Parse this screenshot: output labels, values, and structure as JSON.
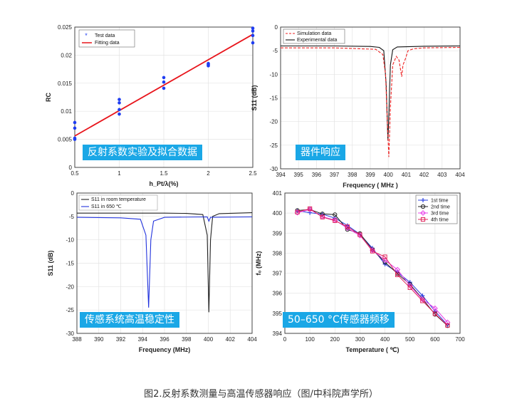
{
  "figure": {
    "caption": "图2.反射系数测量与高温传感器响应（图/中科院声学所）",
    "panel_tags": [
      "反射系数实验及拟合数据",
      "器件响应",
      "传感系统高温稳定性",
      "50–650 °C传感器频移"
    ]
  },
  "chart_data": [
    {
      "type": "scatter",
      "xlabel": "h_Pt/λ(%)",
      "ylabel": "RC",
      "xlim": [
        0.5,
        2.5
      ],
      "ylim": [
        0,
        0.025
      ],
      "xticks": [
        "0.5",
        "1",
        "1.5",
        "2",
        "2.5"
      ],
      "yticks": [
        "0",
        "0.005",
        "0.01",
        "0.015",
        "0.02",
        "0.025"
      ],
      "grid": true,
      "legend_position": "top-left",
      "colors": {
        "test": "#1f3df2",
        "fit": "#e8141b"
      },
      "series": [
        {
          "name": "Test data",
          "points": [
            [
              0.5,
              0.005
            ],
            [
              0.5,
              0.0052
            ],
            [
              0.5,
              0.007
            ],
            [
              0.5,
              0.008
            ],
            [
              1,
              0.0095
            ],
            [
              1,
              0.0103
            ],
            [
              1,
              0.0115
            ],
            [
              1,
              0.0121
            ],
            [
              1.5,
              0.0141
            ],
            [
              1.5,
              0.0152
            ],
            [
              1.5,
              0.016
            ],
            [
              2,
              0.0181
            ],
            [
              2,
              0.0183
            ],
            [
              2,
              0.0185
            ],
            [
              2.5,
              0.0222
            ],
            [
              2.5,
              0.0235
            ],
            [
              2.5,
              0.0243
            ],
            [
              2.5,
              0.0248
            ]
          ]
        },
        {
          "name": "Fitting data",
          "points": [
            [
              0.5,
              0.0056
            ],
            [
              2.5,
              0.0237
            ]
          ]
        }
      ]
    },
    {
      "type": "line",
      "xlabel": "Frequency ( MHz )",
      "ylabel": "S11 (dB)",
      "xlim": [
        394,
        404
      ],
      "ylim": [
        -30,
        0
      ],
      "xticks": [
        "394",
        "395",
        "396",
        "397",
        "398",
        "399",
        "400",
        "401",
        "402",
        "403",
        "404"
      ],
      "yticks": [
        "0",
        "-5",
        "-10",
        "-15",
        "-20",
        "-25",
        "-30"
      ],
      "grid": true,
      "legend_position": "top-left",
      "colors": {
        "sim": "#ee2222",
        "exp": "#111111"
      },
      "series": [
        {
          "name": "Simulation data",
          "style": "dashed",
          "points": [
            [
              394,
              -4.4
            ],
            [
              397,
              -4.4
            ],
            [
              399.3,
              -4.7
            ],
            [
              399.7,
              -5.8
            ],
            [
              399.85,
              -10
            ],
            [
              399.95,
              -20
            ],
            [
              400.03,
              -27.5
            ],
            [
              400.12,
              -17
            ],
            [
              400.25,
              -8
            ],
            [
              400.45,
              -6.2
            ],
            [
              400.6,
              -7
            ],
            [
              400.75,
              -10.5
            ],
            [
              400.82,
              -8
            ],
            [
              400.95,
              -6.8
            ],
            [
              401.1,
              -5
            ],
            [
              401.4,
              -4.6
            ],
            [
              402,
              -4.4
            ],
            [
              404,
              -4.3
            ]
          ]
        },
        {
          "name": "Experimental data",
          "style": "solid",
          "points": [
            [
              394,
              -4.0
            ],
            [
              397,
              -4.0
            ],
            [
              399.0,
              -4.1
            ],
            [
              399.5,
              -4.3
            ],
            [
              399.75,
              -5
            ],
            [
              399.88,
              -12
            ],
            [
              399.98,
              -24
            ],
            [
              400.04,
              -18
            ],
            [
              400.12,
              -8
            ],
            [
              400.25,
              -4.8
            ],
            [
              400.5,
              -4.2
            ],
            [
              402,
              -4.05
            ],
            [
              404,
              -4.0
            ]
          ]
        }
      ]
    },
    {
      "type": "line",
      "xlabel": "Frequency (MHz)",
      "ylabel": "S11 (dB)",
      "xlim": [
        388,
        404
      ],
      "ylim": [
        -30,
        0
      ],
      "xticks": [
        "388",
        "390",
        "392",
        "394",
        "396",
        "398",
        "400",
        "402",
        "404"
      ],
      "yticks": [
        "0",
        "-5",
        "-10",
        "-15",
        "-20",
        "-25",
        "-30"
      ],
      "grid": true,
      "legend_position": "top-left",
      "colors": {
        "room": "#222222",
        "hot": "#2233dd"
      },
      "series": [
        {
          "name": "S11 in room temperature",
          "points": [
            [
              388,
              -4.3
            ],
            [
              396,
              -4.3
            ],
            [
              398,
              -4.35
            ],
            [
              399.5,
              -4.6
            ],
            [
              399.9,
              -9
            ],
            [
              400.05,
              -25.5
            ],
            [
              400.2,
              -10
            ],
            [
              400.4,
              -5
            ],
            [
              401,
              -4.4
            ],
            [
              404,
              -4.2
            ]
          ]
        },
        {
          "name": "S11 in 650 ℃",
          "points": [
            [
              388,
              -5.2
            ],
            [
              392,
              -5.3
            ],
            [
              393.8,
              -5.6
            ],
            [
              394.3,
              -9
            ],
            [
              394.55,
              -24.5
            ],
            [
              394.75,
              -10
            ],
            [
              395.0,
              -6
            ],
            [
              396,
              -5.2
            ],
            [
              399.9,
              -5.1
            ],
            [
              400.05,
              -6.0
            ],
            [
              400.2,
              -5.2
            ],
            [
              404,
              -5.1
            ]
          ]
        }
      ]
    },
    {
      "type": "line",
      "xlabel": "Temperature ( ℃)",
      "ylabel": "f₀ (MHz)",
      "xlim": [
        0,
        700
      ],
      "ylim": [
        394,
        401
      ],
      "xticks": [
        "0",
        "100",
        "200",
        "300",
        "400",
        "500",
        "600",
        "700"
      ],
      "yticks": [
        "401",
        "400",
        "399",
        "398",
        "397",
        "396",
        "395",
        "394"
      ],
      "grid": true,
      "legend_position": "top-right",
      "x": [
        50,
        100,
        150,
        200,
        250,
        300,
        350,
        400,
        450,
        500,
        550,
        600,
        650
      ],
      "series": [
        {
          "name": "1st time",
          "color": "#2a3fe0",
          "marker": "plus",
          "values": [
            400.12,
            400.02,
            399.95,
            399.75,
            399.38,
            398.95,
            398.25,
            397.45,
            397.05,
            396.55,
            395.88,
            395.1,
            394.42
          ]
        },
        {
          "name": "2nd time",
          "color": "#222222",
          "marker": "circle",
          "values": [
            400.13,
            400.18,
            399.96,
            399.92,
            399.18,
            398.98,
            398.18,
            397.55,
            396.98,
            396.45,
            395.72,
            394.95,
            394.38
          ]
        },
        {
          "name": "3rd time",
          "color": "#e83ee8",
          "marker": "diamond",
          "values": [
            400.02,
            400.18,
            399.82,
            399.65,
            399.25,
            398.88,
            398.15,
            397.65,
            397.18,
            396.38,
            395.7,
            395.25,
            394.55
          ]
        },
        {
          "name": "4th time",
          "color": "#e0205a",
          "marker": "square",
          "values": [
            400.05,
            400.22,
            399.8,
            399.62,
            399.32,
            398.92,
            398.1,
            397.82,
            396.92,
            396.28,
            395.62,
            394.98,
            394.4
          ]
        }
      ]
    }
  ]
}
